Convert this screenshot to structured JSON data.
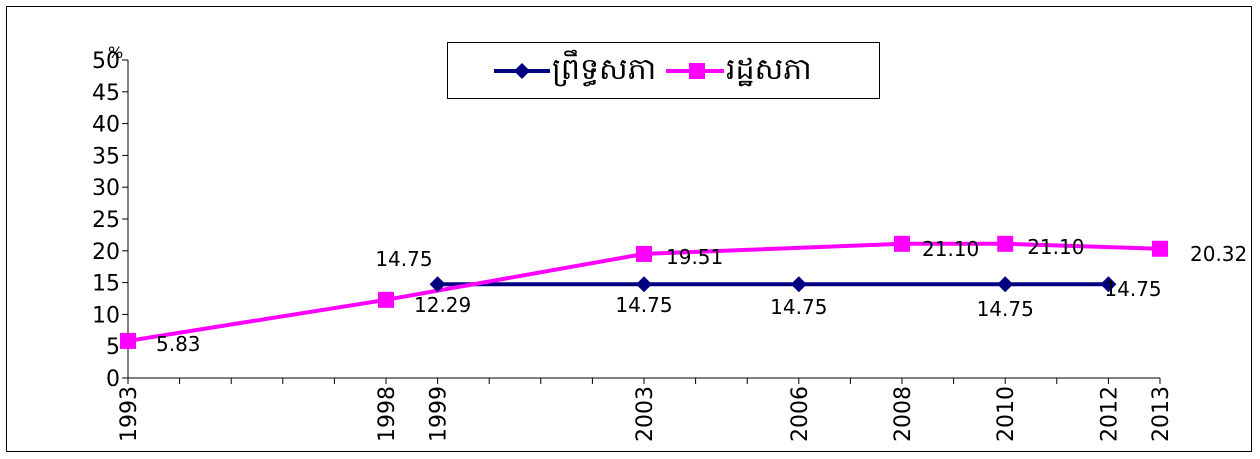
{
  "chart_data": {
    "type": "line",
    "title": "",
    "xlabel": "",
    "ylabel": "",
    "y_unit": "%",
    "ylim": [
      0,
      50
    ],
    "y_ticks": [
      0,
      5,
      10,
      15,
      20,
      25,
      30,
      35,
      40,
      45,
      50
    ],
    "x_ticks": [
      "1993",
      "1998",
      "1999",
      "2003",
      "2006",
      "2008",
      "2010",
      "2012",
      "2013"
    ],
    "legend_position": "top-center",
    "series": [
      {
        "name": "ព្រឹទ្ធសភា",
        "color": "#000080",
        "marker": "diamond",
        "points": [
          {
            "x": 1999,
            "y": 14.75,
            "label": "14.75"
          },
          {
            "x": 2003,
            "y": 14.75,
            "label": "14.75"
          },
          {
            "x": 2006,
            "y": 14.75,
            "label": "14.75"
          },
          {
            "x": 2010,
            "y": 14.75,
            "label": "14.75"
          },
          {
            "x": 2012,
            "y": 14.75,
            "label": "14.75"
          }
        ]
      },
      {
        "name": "រដ្ឋសភា",
        "color": "#FF00FF",
        "marker": "square",
        "points": [
          {
            "x": 1993,
            "y": 5.83,
            "label": "5.83"
          },
          {
            "x": 1998,
            "y": 12.29,
            "label": "12.29"
          },
          {
            "x": 2003,
            "y": 19.51,
            "label": "19.51"
          },
          {
            "x": 2008,
            "y": 21.1,
            "label": "21.10"
          },
          {
            "x": 2010,
            "y": 21.1,
            "label": "21.10"
          },
          {
            "x": 2013,
            "y": 20.32,
            "label": "20.32"
          }
        ]
      }
    ]
  }
}
